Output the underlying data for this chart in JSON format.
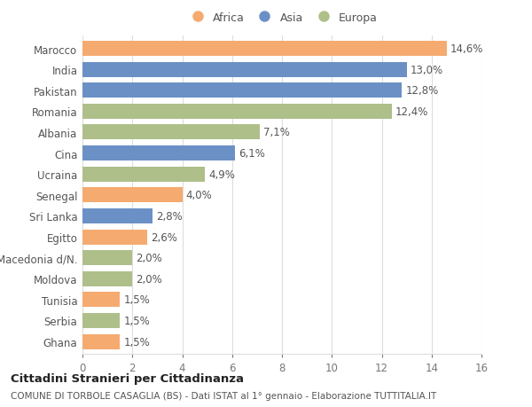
{
  "categories": [
    "Marocco",
    "India",
    "Pakistan",
    "Romania",
    "Albania",
    "Cina",
    "Ucraina",
    "Senegal",
    "Sri Lanka",
    "Egitto",
    "Macedonia d/N.",
    "Moldova",
    "Tunisia",
    "Serbia",
    "Ghana"
  ],
  "values": [
    14.6,
    13.0,
    12.8,
    12.4,
    7.1,
    6.1,
    4.9,
    4.0,
    2.8,
    2.6,
    2.0,
    2.0,
    1.5,
    1.5,
    1.5
  ],
  "labels": [
    "14,6%",
    "13,0%",
    "12,8%",
    "12,4%",
    "7,1%",
    "6,1%",
    "4,9%",
    "4,0%",
    "2,8%",
    "2,6%",
    "2,0%",
    "2,0%",
    "1,5%",
    "1,5%",
    "1,5%"
  ],
  "continents": [
    "Africa",
    "Asia",
    "Asia",
    "Europa",
    "Europa",
    "Asia",
    "Europa",
    "Africa",
    "Asia",
    "Africa",
    "Europa",
    "Europa",
    "Africa",
    "Europa",
    "Africa"
  ],
  "colors": {
    "Africa": "#F5AA70",
    "Asia": "#6B90C5",
    "Europa": "#AEBF8A"
  },
  "xlim": [
    0,
    16
  ],
  "xticks": [
    0,
    2,
    4,
    6,
    8,
    10,
    12,
    14,
    16
  ],
  "title": "Cittadini Stranieri per Cittadinanza",
  "subtitle": "COMUNE DI TORBOLE CASAGLIA (BS) - Dati ISTAT al 1° gennaio - Elaborazione TUTTITALIA.IT",
  "background_color": "#ffffff",
  "grid_color": "#dddddd",
  "bar_height": 0.72,
  "label_fontsize": 8.5,
  "ytick_fontsize": 8.5,
  "xtick_fontsize": 8.5
}
